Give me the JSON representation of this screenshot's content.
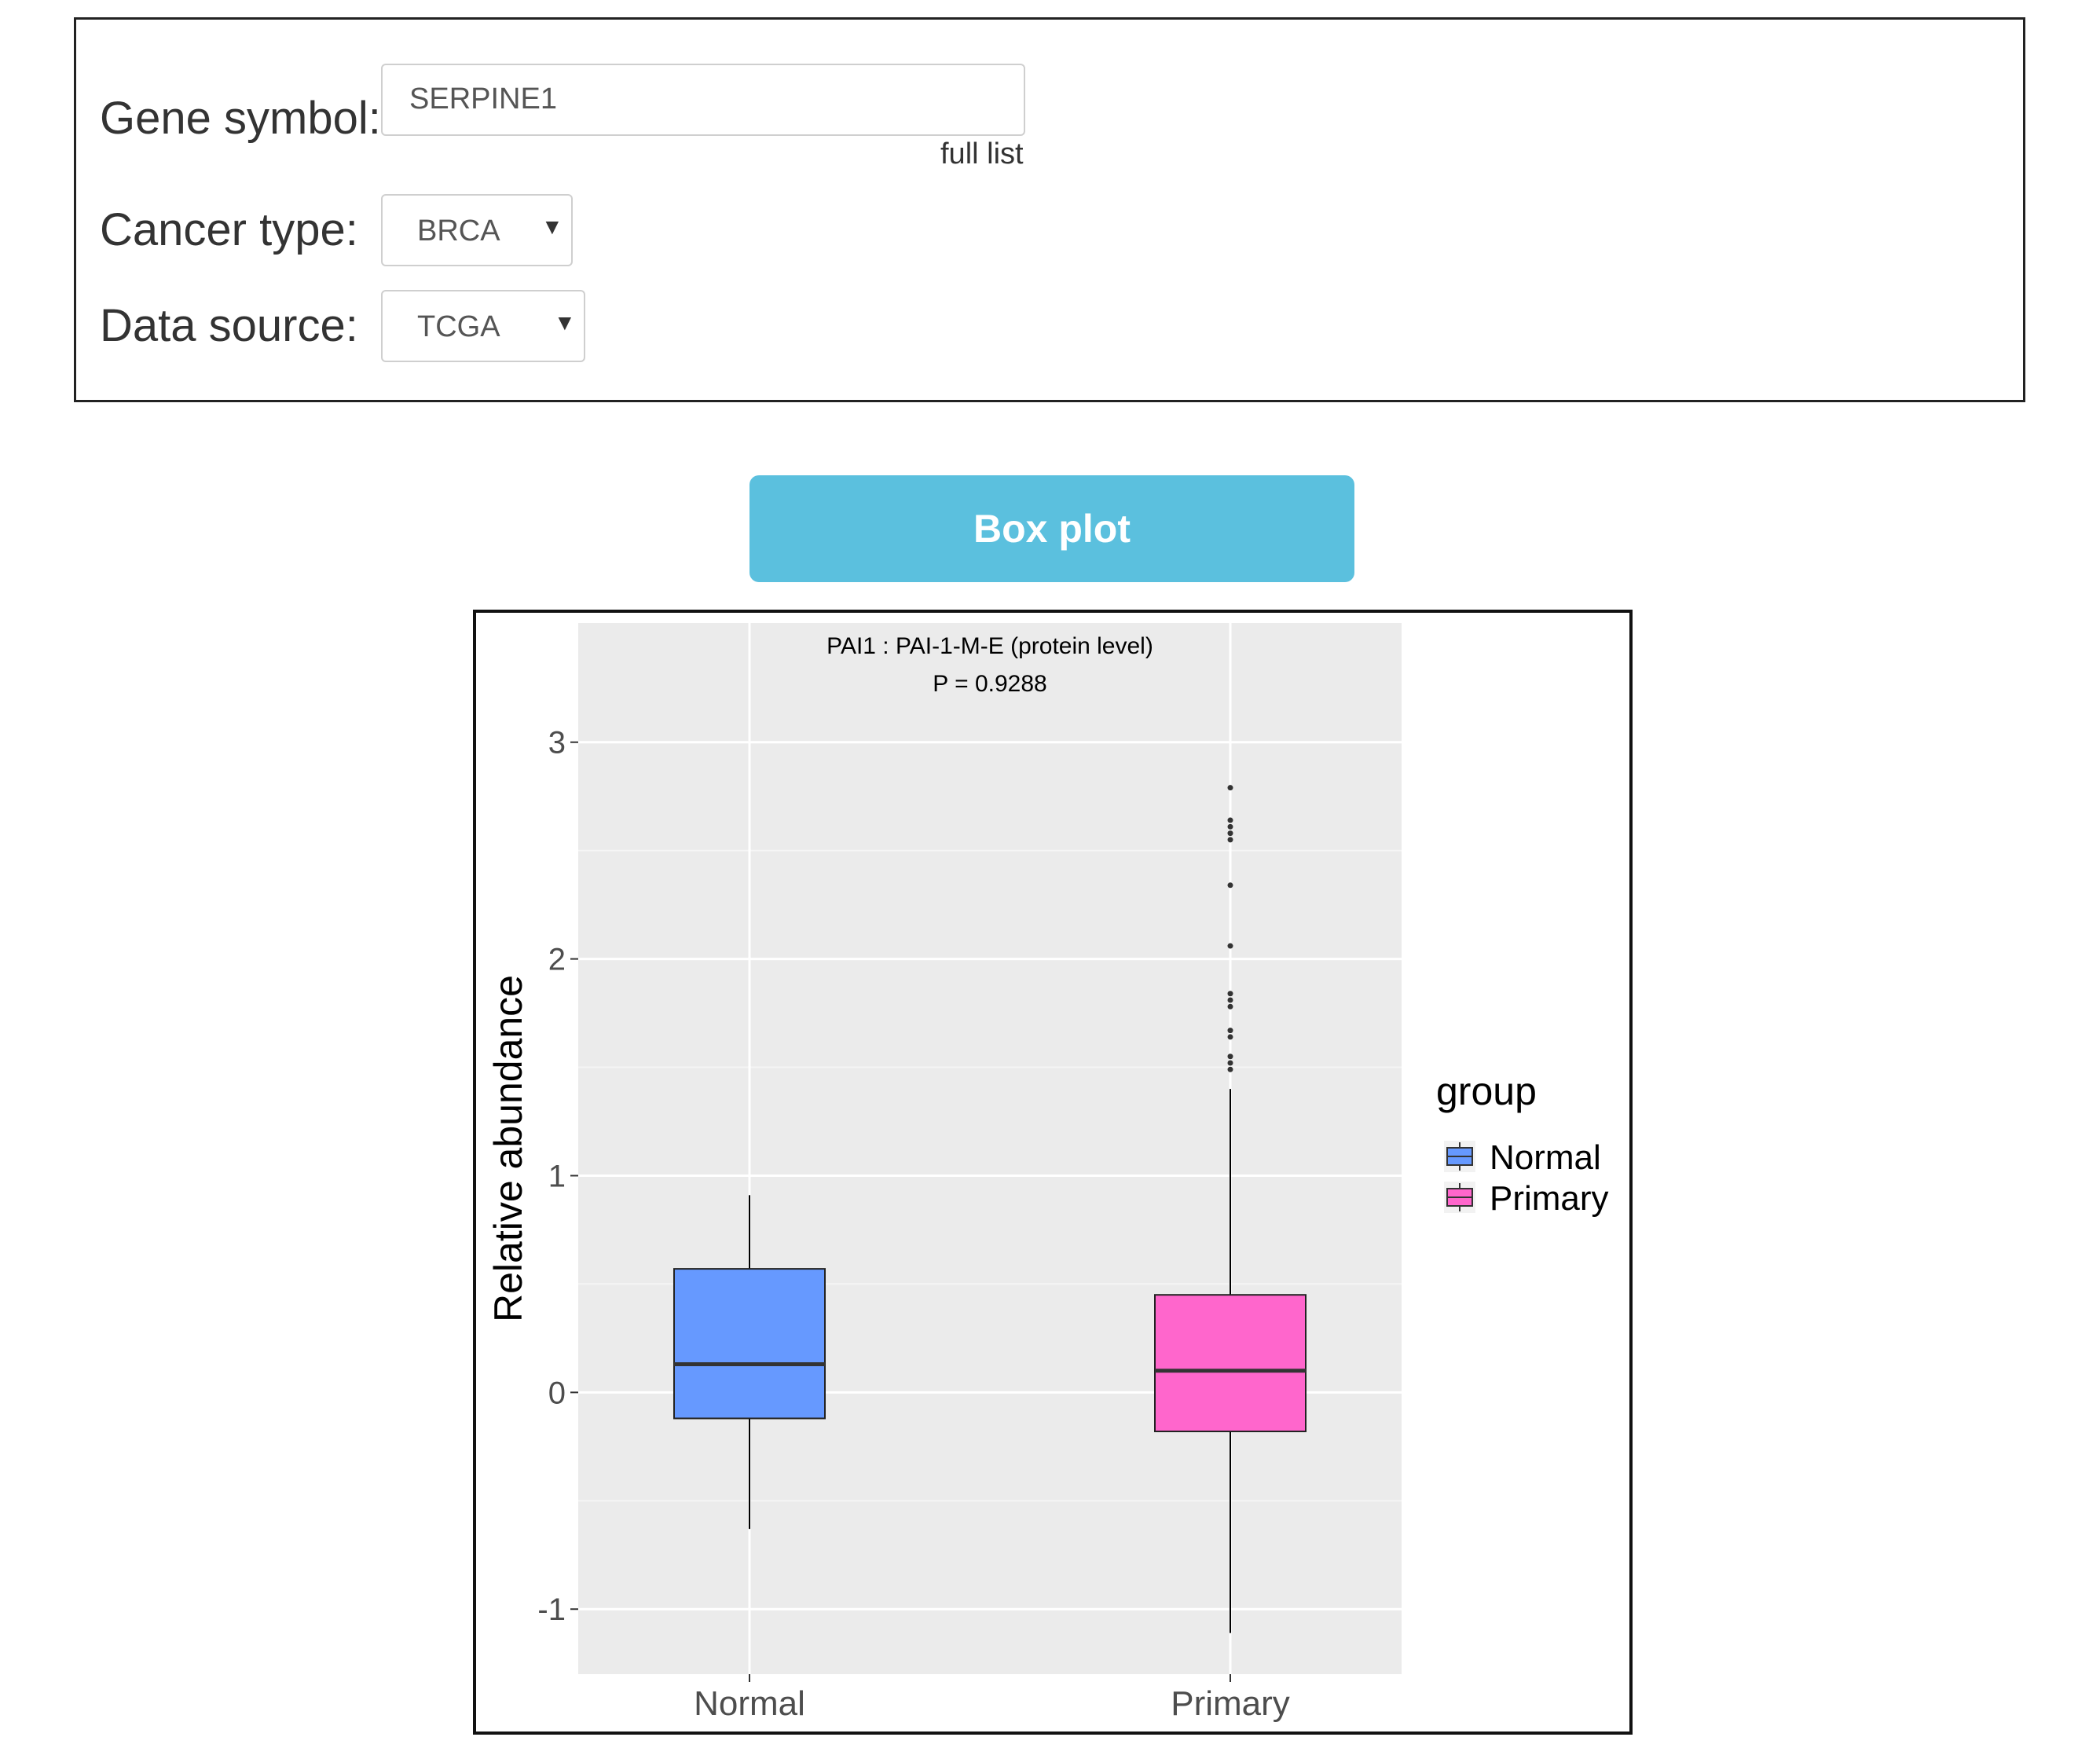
{
  "form": {
    "gene_label": "Gene symbol:",
    "gene_value": "SERPINE1",
    "full_list_link": "full list",
    "cancer_label": "Cancer type:",
    "cancer_value": "BRCA",
    "source_label": "Data source:",
    "source_value": "TCGA",
    "dropdown_caret": "▼"
  },
  "button": {
    "label": "Box plot",
    "color": "#5bc0de"
  },
  "chart_data": {
    "type": "box",
    "title": "PAI1 : PAI-1-M-E (protein level)",
    "subtitle": "P =  0.9288",
    "ylabel": "Relative abundance",
    "xlabel": "",
    "ylim": [
      -1.3,
      3.55
    ],
    "yticks": [
      -1,
      0,
      1,
      2,
      3
    ],
    "ytick_labels": [
      "-1",
      "0",
      "1",
      "2",
      "3"
    ],
    "categories": [
      "Normal",
      "Primary"
    ],
    "legend": {
      "title": "group",
      "position": "right",
      "entries": [
        "Normal",
        "Primary"
      ]
    },
    "grid": true,
    "series": [
      {
        "name": "Normal",
        "color": "#6699ff",
        "whisker_low": -0.63,
        "q1": -0.12,
        "median": 0.13,
        "q3": 0.57,
        "whisker_high": 0.91,
        "outliers": []
      },
      {
        "name": "Primary",
        "color": "#ff66cc",
        "whisker_low": -1.11,
        "q1": -0.18,
        "median": 0.1,
        "q3": 0.45,
        "whisker_high": 1.4,
        "outliers": [
          2.79,
          2.64,
          2.61,
          2.58,
          2.55,
          2.34,
          2.06,
          1.84,
          1.81,
          1.78,
          1.67,
          1.64,
          1.55,
          1.52,
          1.49
        ]
      }
    ]
  }
}
